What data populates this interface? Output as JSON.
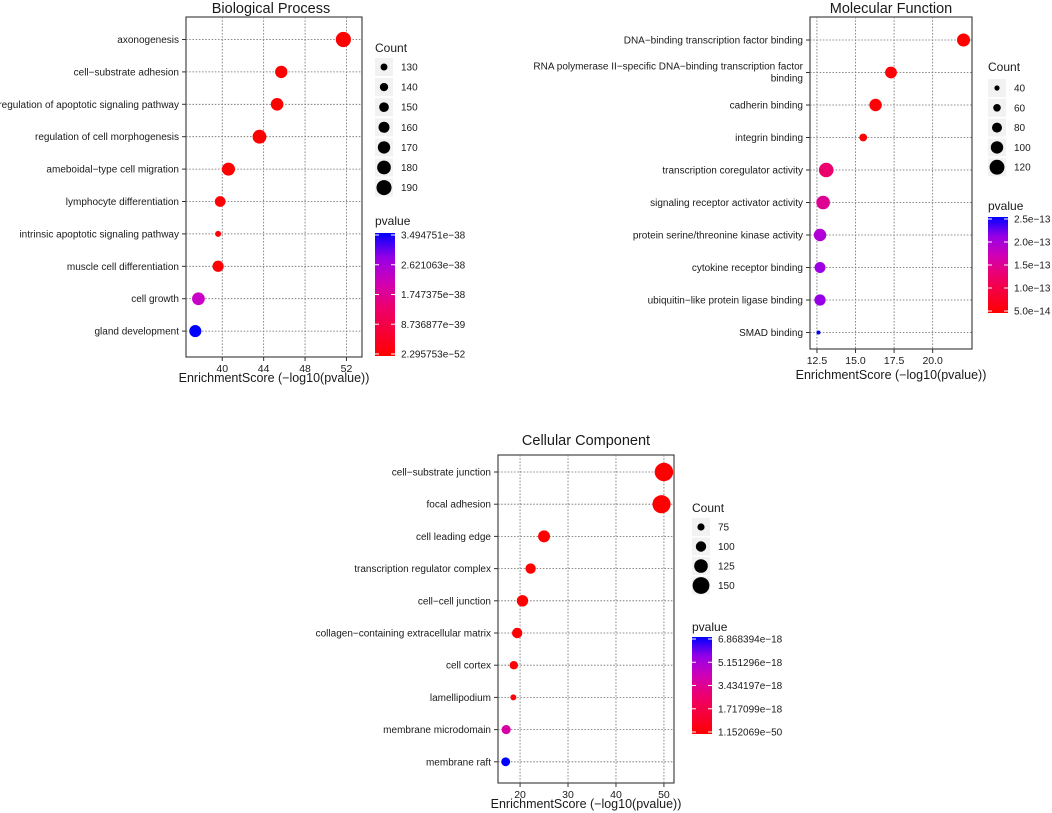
{
  "chart_data": [
    {
      "type": "scatter",
      "subtype": "dot-plot",
      "title": "Biological Process",
      "xlabel": "EnrichmentScore (−log10(pvalue))",
      "xlim": [
        36.5,
        53.5
      ],
      "xticks": [
        40,
        44,
        48,
        52
      ],
      "xtick_labels": [
        "40",
        "44",
        "48",
        "52"
      ],
      "categories": [
        "axonogenesis",
        "cell−substrate adhesion",
        "regulation of apoptotic signaling pathway",
        "regulation of cell morphogenesis",
        "ameboidal−type cell migration",
        "lymphocyte differentiation",
        "intrinsic apoptotic signaling pathway",
        "muscle cell differentiation",
        "cell growth",
        "gland development"
      ],
      "enrichment": [
        51.7,
        45.7,
        45.3,
        43.6,
        40.6,
        39.8,
        39.6,
        39.6,
        37.7,
        37.4
      ],
      "count": [
        191,
        170,
        172,
        181,
        175,
        158,
        122,
        162,
        173,
        168
      ],
      "color_t": [
        0.0,
        0.0,
        0.0,
        0.0,
        0.0,
        0.02,
        0.02,
        0.02,
        0.65,
        1.0
      ],
      "legend_size": {
        "title": "Count",
        "values": [
          130,
          140,
          150,
          160,
          170,
          180,
          190
        ],
        "labels": [
          "130",
          "140",
          "150",
          "160",
          "170",
          "180",
          "190"
        ]
      },
      "legend_color": {
        "title": "pvalue",
        "labels": [
          "3.494751e−38",
          "2.621063e−38",
          "1.747375e−38",
          "8.736877e−39",
          "2.295753e−52"
        ]
      }
    },
    {
      "type": "scatter",
      "subtype": "dot-plot",
      "title": "Molecular Function",
      "xlabel": "EnrichmentScore (−log10(pvalue))",
      "xlim": [
        12.05,
        22.55
      ],
      "xticks": [
        12.5,
        15.0,
        17.5,
        20.0
      ],
      "xtick_labels": [
        "12.5",
        "15.0",
        "17.5",
        "20.0"
      ],
      "categories": [
        "DNA−binding transcription factor binding",
        "RNA polymerase II−specific DNA−binding transcription factor binding",
        "cadherin binding",
        "integrin binding",
        "transcription coregulator activity",
        "signaling receptor activator activity",
        "protein serine/threonine kinase activity",
        "cytokine receptor binding",
        "ubiquitin−like protein ligase binding",
        "SMAD binding"
      ],
      "enrichment": [
        22.0,
        17.3,
        16.3,
        15.5,
        13.1,
        12.9,
        12.7,
        12.7,
        12.7,
        12.6
      ],
      "count": [
        105,
        95,
        100,
        62,
        118,
        110,
        100,
        88,
        90,
        25
      ],
      "color_t": [
        0.0,
        0.02,
        0.02,
        0.02,
        0.4,
        0.5,
        0.72,
        0.78,
        0.8,
        1.0
      ],
      "category_labels": [
        [
          "DNA−binding transcription factor binding"
        ],
        [
          "RNA polymerase II−specific DNA−binding transcription factor",
          "binding"
        ],
        [
          "cadherin binding"
        ],
        [
          "integrin binding"
        ],
        [
          "transcription coregulator activity"
        ],
        [
          "signaling receptor activator activity"
        ],
        [
          "protein serine/threonine kinase activity"
        ],
        [
          "cytokine receptor binding"
        ],
        [
          "ubiquitin−like protein ligase binding"
        ],
        [
          "SMAD binding"
        ]
      ],
      "legend_size": {
        "title": "Count",
        "values": [
          40,
          60,
          80,
          100,
          120
        ],
        "labels": [
          "40",
          "60",
          "80",
          "100",
          "120"
        ]
      },
      "legend_color": {
        "title": "pvalue",
        "labels": [
          "2.5e−13",
          "2.0e−13",
          "1.5e−13",
          "1.0e−13",
          "5.0e−14"
        ]
      }
    },
    {
      "type": "scatter",
      "subtype": "dot-plot",
      "title": "Cellular Component",
      "xlabel": "EnrichmentScore (−log10(pvalue))",
      "xlim": [
        15.4,
        52.1
      ],
      "xticks": [
        20,
        30,
        40,
        50
      ],
      "xtick_labels": [
        "20",
        "30",
        "40",
        "50"
      ],
      "categories": [
        "cell−substrate junction",
        "focal adhesion",
        "cell leading edge",
        "transcription regulator complex",
        "cell−cell junction",
        "collagen−containing extracellular matrix",
        "cell cortex",
        "lamellipodium",
        "membrane microdomain",
        "membrane raft"
      ],
      "enrichment": [
        50.0,
        49.5,
        25.0,
        22.2,
        20.5,
        19.4,
        18.7,
        18.6,
        17.1,
        17.0
      ],
      "count": [
        163,
        160,
        112,
        100,
        108,
        100,
        85,
        55,
        90,
        88
      ],
      "color_t": [
        0.0,
        0.0,
        0.0,
        0.0,
        0.0,
        0.0,
        0.02,
        0.02,
        0.55,
        1.0
      ],
      "legend_size": {
        "title": "Count",
        "values": [
          75,
          100,
          125,
          150
        ],
        "labels": [
          "75",
          "100",
          "125",
          "150"
        ]
      },
      "legend_color": {
        "title": "pvalue",
        "labels": [
          "6.868394e−18",
          "5.151296e−18",
          "3.434197e−18",
          "1.717099e−18",
          "1.152069e−50"
        ]
      }
    }
  ]
}
